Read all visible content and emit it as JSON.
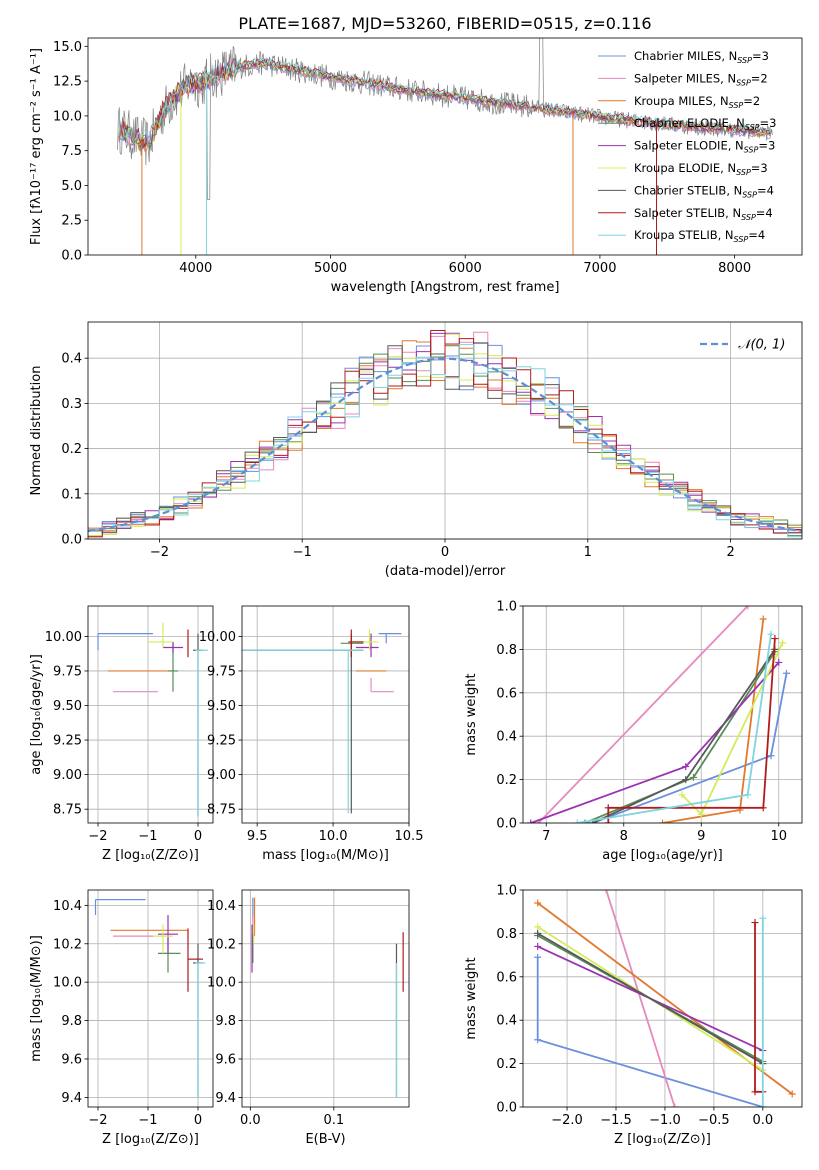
{
  "title": "PLATE=1687, MJD=53260, FIBERID=0515, z=0.116",
  "series": [
    {
      "name": "Chabrier MILES",
      "nssp": "3",
      "color": "#6a8fde"
    },
    {
      "name": "Salpeter MILES",
      "nssp": "2",
      "color": "#e589be"
    },
    {
      "name": "Kroupa MILES",
      "nssp": "2",
      "color": "#e0792c"
    },
    {
      "name": "Chabrier ELODIE",
      "nssp": "3",
      "color": "#568e56"
    },
    {
      "name": "Salpeter ELODIE",
      "nssp": "3",
      "color": "#9b32b2"
    },
    {
      "name": "Kroupa ELODIE",
      "nssp": "3",
      "color": "#d4ec5a"
    },
    {
      "name": "Chabrier STELIB",
      "nssp": "4",
      "color": "#595959"
    },
    {
      "name": "Salpeter STELIB",
      "nssp": "4",
      "color": "#b01c1c"
    },
    {
      "name": "Kroupa STELIB",
      "nssp": "4",
      "color": "#7fd4e0"
    }
  ],
  "legend_suffix": "N",
  "legend_sub": "SSP",
  "chart_data": [
    {
      "id": "spectrum",
      "type": "line",
      "xlabel": "wavelength [Angstrom, rest frame]",
      "ylabel": "Flux [fλ10⁻¹⁷ erg cm⁻² s⁻¹ A⁻¹]",
      "xlim": [
        3200,
        8500
      ],
      "ylim": [
        0,
        15.6
      ],
      "xticks": [
        4000,
        5000,
        6000,
        7000,
        8000
      ],
      "yticks": [
        0.0,
        2.5,
        5.0,
        7.5,
        10.0,
        12.5,
        15.0
      ],
      "data_color": "#7f7f7f",
      "continuum": {
        "x": [
          3450,
          3550,
          3650,
          3750,
          3850,
          3950,
          4050,
          4150,
          4300,
          4500,
          4700,
          5000,
          5300,
          5600,
          5900,
          6200,
          6500,
          6800,
          7100,
          7400,
          7700,
          8000,
          8250
        ],
        "y": [
          9.0,
          8.4,
          8.0,
          10.2,
          11.5,
          12.3,
          12.4,
          13.0,
          13.5,
          13.8,
          13.4,
          12.8,
          12.3,
          11.8,
          11.4,
          11.0,
          10.6,
          10.2,
          9.8,
          9.5,
          9.2,
          9.0,
          8.8
        ]
      },
      "drops": [
        {
          "x": 3600,
          "color": "#e0792c"
        },
        {
          "x": 3890,
          "color": "#d4ec5a"
        },
        {
          "x": 4080,
          "color": "#7fd4e0"
        },
        {
          "x": 6800,
          "color": "#e0792c"
        },
        {
          "x": 7420,
          "color": "#b01c1c"
        }
      ]
    },
    {
      "id": "residuals",
      "type": "histogram",
      "xlabel": "(data-model)/error",
      "ylabel": "Normed distribution",
      "xlim": [
        -2.5,
        2.5
      ],
      "ylim": [
        0,
        0.48
      ],
      "xticks": [
        -2,
        -1,
        0,
        1,
        2
      ],
      "yticks": [
        0.0,
        0.1,
        0.2,
        0.3,
        0.4
      ],
      "bin_width": 0.1,
      "gaussian_label": "𝒩(0, 1)",
      "gaussian_color": "#5b8fd6"
    },
    {
      "id": "age-vs-Z",
      "type": "errorbar",
      "xlabel": "Z [log₁₀(Z/Z⊙)]",
      "ylabel": "age  [log₁₀(age/yr)]",
      "xlim": [
        -2.2,
        0.3
      ],
      "ylim": [
        8.65,
        10.22
      ],
      "xticks": [
        -2,
        -1,
        0
      ],
      "yticks": [
        8.75,
        9.0,
        9.25,
        9.5,
        9.75,
        10.0
      ],
      "points": [
        {
          "s": 0,
          "x": -2.0,
          "y": 10.02,
          "xe": [
            -2.0,
            -0.9
          ],
          "ye": [
            9.9,
            10.02
          ]
        },
        {
          "s": 1,
          "x": -0.7,
          "y": 9.6,
          "xe": [
            -1.7,
            -0.8
          ],
          "ye": [
            9.6,
            9.6
          ]
        },
        {
          "s": 2,
          "x": -0.8,
          "y": 9.75,
          "xe": [
            -1.8,
            -0.5
          ],
          "ye": [
            9.75,
            9.75
          ]
        },
        {
          "s": 3,
          "x": -0.5,
          "y": 9.75,
          "xe": [
            -0.6,
            -0.4
          ],
          "ye": [
            9.6,
            9.95
          ]
        },
        {
          "s": 4,
          "x": -0.5,
          "y": 9.92,
          "xe": [
            -0.7,
            -0.3
          ],
          "ye": [
            9.88,
            9.96
          ]
        },
        {
          "s": 5,
          "x": -0.7,
          "y": 9.96,
          "xe": [
            -1.0,
            -0.5
          ],
          "ye": [
            9.92,
            10.1
          ]
        },
        {
          "s": 6,
          "x": 0.0,
          "y": 9.9,
          "xe": [
            -0.1,
            0.1
          ],
          "ye": [
            8.7,
            10.02
          ]
        },
        {
          "s": 7,
          "x": -0.2,
          "y": 9.96,
          "xe": [
            -0.2,
            -0.2
          ],
          "ye": [
            9.85,
            10.05
          ]
        },
        {
          "s": 8,
          "x": 0.0,
          "y": 9.9,
          "xe": [
            -0.05,
            0.2
          ],
          "ye": [
            8.7,
            9.9
          ]
        }
      ]
    },
    {
      "id": "age-vs-mass",
      "type": "errorbar",
      "xlabel": "mass [log₁₀(M/M⊙)]",
      "ylabel": "",
      "xlim": [
        9.4,
        10.5
      ],
      "ylim": [
        8.65,
        10.22
      ],
      "xticks": [
        9.5,
        10.0,
        10.5
      ],
      "yticks": [
        8.75,
        9.0,
        9.25,
        9.5,
        9.75,
        10.0
      ],
      "points": [
        {
          "s": 0,
          "x": 10.35,
          "y": 10.02,
          "xe": [
            10.3,
            10.45
          ],
          "ye": [
            9.95,
            10.02
          ]
        },
        {
          "s": 1,
          "x": 10.25,
          "y": 9.6,
          "xe": [
            10.25,
            10.4
          ],
          "ye": [
            9.6,
            9.7
          ]
        },
        {
          "s": 2,
          "x": 10.27,
          "y": 9.75,
          "xe": [
            10.15,
            10.35
          ],
          "ye": [
            9.75,
            9.75
          ]
        },
        {
          "s": 3,
          "x": 10.12,
          "y": 9.95,
          "xe": [
            10.05,
            10.2
          ],
          "ye": [
            9.85,
            10.0
          ]
        },
        {
          "s": 4,
          "x": 10.25,
          "y": 9.92,
          "xe": [
            10.15,
            10.3
          ],
          "ye": [
            9.85,
            10.02
          ]
        },
        {
          "s": 5,
          "x": 10.24,
          "y": 9.96,
          "xe": [
            10.15,
            10.3
          ],
          "ye": [
            9.9,
            10.05
          ]
        },
        {
          "s": 6,
          "x": 10.12,
          "y": 9.9,
          "xe": [
            9.4,
            10.2
          ],
          "ye": [
            8.72,
            10.02
          ]
        },
        {
          "s": 7,
          "x": 10.12,
          "y": 9.96,
          "xe": [
            10.1,
            10.2
          ],
          "ye": [
            9.85,
            10.05
          ]
        },
        {
          "s": 8,
          "x": 10.1,
          "y": 9.9,
          "xe": [
            9.4,
            10.2
          ],
          "ye": [
            8.72,
            9.9
          ]
        }
      ]
    },
    {
      "id": "weight-vs-age",
      "type": "line",
      "xlabel": "age  [log₁₀(age/yr)]",
      "ylabel": "mass weight",
      "xlim": [
        6.7,
        10.3
      ],
      "ylim": [
        0,
        1
      ],
      "xticks": [
        7,
        8,
        9,
        10
      ],
      "yticks": [
        0.0,
        0.2,
        0.4,
        0.6,
        0.8,
        1.0
      ],
      "lines": [
        {
          "s": 0,
          "x": [
            7.6,
            9.9,
            10.1
          ],
          "y": [
            0.0,
            0.31,
            0.69
          ]
        },
        {
          "s": 1,
          "x": 6.9,
          "x2": 9.6,
          "xs": [
            6.9,
            9.6
          ],
          "y": [
            0.0,
            1.0
          ]
        },
        {
          "s": 2,
          "x": [
            8.5,
            9.5,
            9.8
          ],
          "y": [
            0.0,
            0.06,
            0.94
          ]
        },
        {
          "s": 3,
          "x": [
            7.5,
            8.9,
            9.95
          ],
          "y": [
            0.0,
            0.21,
            0.79
          ]
        },
        {
          "s": 4,
          "x": [
            6.8,
            8.8,
            10.0
          ],
          "y": [
            0.0,
            0.26,
            0.74
          ]
        },
        {
          "s": 5,
          "x": [
            8.75,
            9.0,
            10.05
          ],
          "y": [
            0.13,
            0.04,
            0.83
          ]
        },
        {
          "s": 6,
          "x": [
            7.6,
            8.8,
            9.95
          ],
          "y": [
            0.0,
            0.2,
            0.8
          ]
        },
        {
          "s": 7,
          "x": [
            7.8,
            7.8,
            9.8,
            9.95
          ],
          "y": [
            0.0,
            0.07,
            0.07,
            0.85
          ]
        },
        {
          "s": 8,
          "x": [
            7.4,
            9.6,
            9.9
          ],
          "y": [
            0.0,
            0.13,
            0.87
          ]
        }
      ]
    },
    {
      "id": "mass-vs-Z",
      "type": "errorbar",
      "xlabel": "Z [log₁₀(Z/Z⊙)]",
      "ylabel": "mass [log₁₀(M/M⊙)]",
      "xlim": [
        -2.2,
        0.3
      ],
      "ylim": [
        9.35,
        10.48
      ],
      "xticks": [
        -2,
        -1,
        0
      ],
      "yticks": [
        9.4,
        9.6,
        9.8,
        10.0,
        10.2,
        10.4
      ],
      "points": [
        {
          "s": 0,
          "x": -2.05,
          "y": 10.43,
          "xe": [
            -2.05,
            -1.05
          ],
          "ye": [
            10.35,
            10.43
          ]
        },
        {
          "s": 1,
          "x": -1.3,
          "y": 10.24,
          "xe": [
            -1.7,
            -0.9
          ],
          "ye": [
            10.24,
            10.24
          ]
        },
        {
          "s": 2,
          "x": -1.0,
          "y": 10.27,
          "xe": [
            -1.75,
            -0.2
          ],
          "ye": [
            10.27,
            10.27
          ]
        },
        {
          "s": 3,
          "x": -0.6,
          "y": 10.15,
          "xe": [
            -0.8,
            -0.35
          ],
          "ye": [
            10.05,
            10.25
          ]
        },
        {
          "s": 4,
          "x": -0.6,
          "y": 10.25,
          "xe": [
            -0.8,
            -0.4
          ],
          "ye": [
            10.15,
            10.35
          ]
        },
        {
          "s": 5,
          "x": -0.7,
          "y": 10.24,
          "xe": [
            -0.9,
            -0.5
          ],
          "ye": [
            10.15,
            10.3
          ]
        },
        {
          "s": 6,
          "x": 0.0,
          "y": 10.1,
          "xe": [
            -0.1,
            0.1
          ],
          "ye": [
            9.4,
            10.2
          ]
        },
        {
          "s": 7,
          "x": -0.2,
          "y": 10.12,
          "xe": [
            -0.2,
            0.1
          ],
          "ye": [
            9.95,
            10.28
          ]
        },
        {
          "s": 8,
          "x": 0.0,
          "y": 10.1,
          "xe": [
            -0.05,
            0.15
          ],
          "ye": [
            9.4,
            10.1
          ]
        }
      ]
    },
    {
      "id": "mass-vs-ebv",
      "type": "errorbar",
      "xlabel": "E(B-V)",
      "ylabel": "",
      "xlim": [
        -0.01,
        0.19
      ],
      "ylim": [
        9.35,
        10.48
      ],
      "xticks": [
        0.0,
        0.1
      ],
      "yticks": [
        9.4,
        9.6,
        9.8,
        10.0,
        10.2,
        10.4
      ],
      "points": [
        {
          "s": 0,
          "x": 0.003,
          "y": 10.4,
          "xe": [
            0.003,
            0.003
          ],
          "ye": [
            10.33,
            10.44
          ]
        },
        {
          "s": 1,
          "x": 0.003,
          "y": 10.3,
          "xe": [
            0.003,
            0.003
          ],
          "ye": [
            10.25,
            10.35
          ]
        },
        {
          "s": 2,
          "x": 0.005,
          "y": 10.3,
          "xe": [
            0.005,
            0.005
          ],
          "ye": [
            10.24,
            10.44
          ]
        },
        {
          "s": 3,
          "x": 0.003,
          "y": 10.15,
          "xe": [
            0.003,
            0.003
          ],
          "ye": [
            10.1,
            10.25
          ]
        },
        {
          "s": 4,
          "x": 0.002,
          "y": 10.1,
          "xe": [
            0.002,
            0.002
          ],
          "ye": [
            10.05,
            10.3
          ]
        },
        {
          "s": 5,
          "x": 0.004,
          "y": 10.25,
          "xe": [
            0.004,
            0.004
          ],
          "ye": [
            10.2,
            10.3
          ]
        },
        {
          "s": 6,
          "x": 0.175,
          "y": 10.0,
          "xe": [
            0.175,
            0.175
          ],
          "ye": [
            9.4,
            10.2
          ]
        },
        {
          "s": 7,
          "x": 0.183,
          "y": 10.1,
          "xe": [
            0.183,
            0.183
          ],
          "ye": [
            9.95,
            10.26
          ]
        },
        {
          "s": 8,
          "x": 0.175,
          "y": 9.9,
          "xe": [
            0.175,
            0.175
          ],
          "ye": [
            9.4,
            10.1
          ]
        }
      ]
    },
    {
      "id": "weight-vs-Z",
      "type": "line",
      "xlabel": "Z [log₁₀(Z/Z⊙)]",
      "ylabel": "mass weight",
      "xlim": [
        -2.45,
        0.4
      ],
      "ylim": [
        0,
        1
      ],
      "xticks": [
        -2.0,
        -1.5,
        -1.0,
        -0.5,
        0.0
      ],
      "yticks": [
        0.0,
        0.2,
        0.4,
        0.6,
        0.8,
        1.0
      ],
      "lines": [
        {
          "s": 0,
          "x": [
            -2.3,
            -2.3,
            0.0
          ],
          "y": [
            0.69,
            0.31,
            0.0
          ]
        },
        {
          "s": 1,
          "x": [
            -1.6,
            -0.9
          ],
          "y": [
            1.0,
            0.0
          ]
        },
        {
          "s": 2,
          "x": [
            -2.3,
            0.3
          ],
          "y": [
            0.94,
            0.06
          ]
        },
        {
          "s": 3,
          "x": [
            -2.3,
            0.0
          ],
          "y": [
            0.79,
            0.21
          ]
        },
        {
          "s": 4,
          "x": [
            -2.3,
            0.0
          ],
          "y": [
            0.74,
            0.26
          ]
        },
        {
          "s": 5,
          "x": [
            -2.3,
            0.0
          ],
          "y": [
            0.83,
            0.17
          ]
        },
        {
          "s": 6,
          "x": [
            -2.3,
            0.0
          ],
          "y": [
            0.8,
            0.2
          ]
        },
        {
          "s": 7,
          "x": [
            -0.08,
            -0.08,
            0.0
          ],
          "y": [
            0.85,
            0.07,
            0.07
          ]
        },
        {
          "s": 8,
          "x": [
            0.0,
            0.0
          ],
          "y": [
            0.87,
            0.0
          ]
        }
      ]
    }
  ]
}
